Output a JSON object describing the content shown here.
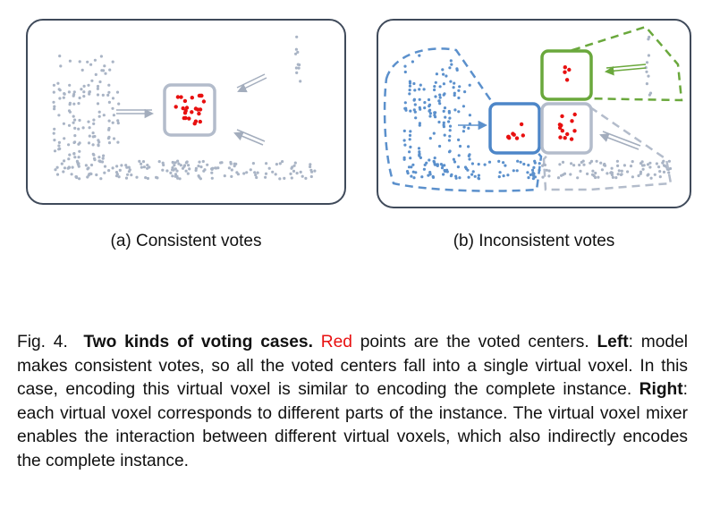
{
  "panels": {
    "a": {
      "caption": "(a) Consistent votes"
    },
    "b": {
      "caption": "(b) Inconsistent votes"
    }
  },
  "caption": {
    "fig_label": "Fig. 4.",
    "title": "Two kinds of voting cases.",
    "red_word": "Red",
    "s1": " points are the voted centers.",
    "left_label": "Left",
    "s2": ": model makes consistent votes, so all the voted centers fall into a single virtual voxel. In this case, encoding this virtual voxel is similar to encoding the complete instance.",
    "right_label": "Right",
    "s3": ": each virtual voxel corresponds to different parts of the instance. The virtual voxel mixer enables the interaction between different virtual voxels, which also indirectly encodes the complete instance."
  },
  "colors": {
    "gray_points": "#a9b4c5",
    "blue_points": "#5b90cc",
    "voted_centers": "#e81010",
    "voxel_gray": "#b3bccb",
    "voxel_blue": "#4d86c8",
    "voxel_green": "#6aa83c",
    "panel_border": "#3f4a5a"
  }
}
